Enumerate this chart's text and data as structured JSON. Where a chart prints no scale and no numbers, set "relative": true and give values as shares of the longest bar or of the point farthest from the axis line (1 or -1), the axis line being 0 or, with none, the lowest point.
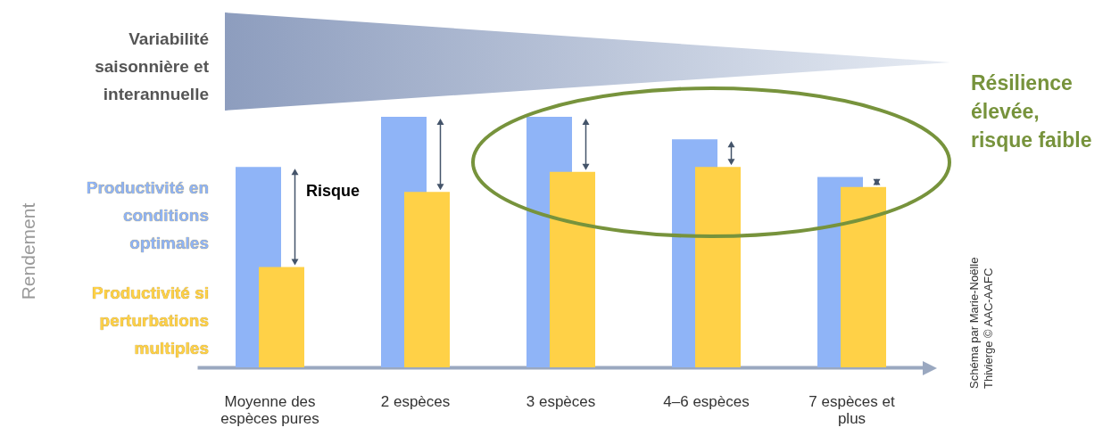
{
  "chart_data": {
    "type": "bar",
    "relative": true,
    "legend": "left",
    "categories": [
      "Moyenne des espèces pures",
      "2 espèces",
      "3 espèces",
      "4–6 espèces",
      "7 espèces et plus"
    ],
    "series": [
      {
        "name": "Productivité en conditions optimales",
        "color": "#8fb4f7",
        "values": [
          0.8,
          1,
          1,
          0.91,
          0.76
        ]
      },
      {
        "name": "Productivité si perturbations multiples",
        "color": "#ffd147",
        "values": [
          0.4,
          0.7,
          0.78,
          0.8,
          0.72
        ]
      }
    ],
    "annotations": [
      "Rendement",
      "Variabilité saisonnière et interannuelle",
      "Risque",
      "Résilience élevée, risque faible",
      "Schéma par Marie-Noëlle Thivierge © AAC-AAFC"
    ]
  }
}
